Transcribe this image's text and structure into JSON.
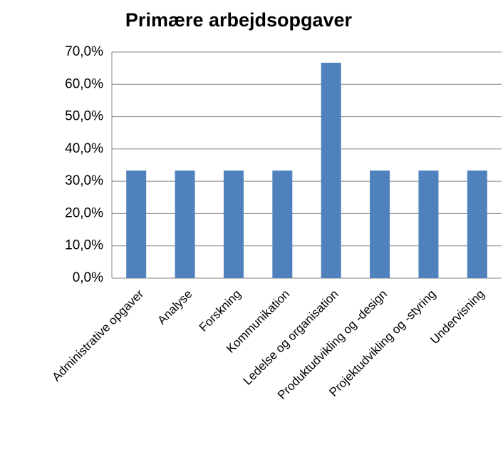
{
  "chart_data": {
    "type": "bar",
    "title": "Primære arbejdsopgaver",
    "categories": [
      "Administrative opgaver",
      "Analyse",
      "Forskning",
      "Kommunikation",
      "Ledelse og organisation",
      "Produktudvikling og -design",
      "Projektudvikling og -styring",
      "Undervisning"
    ],
    "values": [
      33.3,
      33.3,
      33.3,
      33.3,
      66.7,
      33.3,
      33.3,
      33.3
    ],
    "color": "#4f81bd",
    "ylim": [
      0,
      70
    ],
    "yticks": [
      {
        "value": 0,
        "label": "0,0%"
      },
      {
        "value": 10,
        "label": "10,0%"
      },
      {
        "value": 20,
        "label": "20,0%"
      },
      {
        "value": 30,
        "label": "30,0%"
      },
      {
        "value": 40,
        "label": "40,0%"
      },
      {
        "value": 50,
        "label": "50,0%"
      },
      {
        "value": 60,
        "label": "60,0%"
      },
      {
        "value": 70,
        "label": "70,0%"
      }
    ],
    "grid": true
  }
}
